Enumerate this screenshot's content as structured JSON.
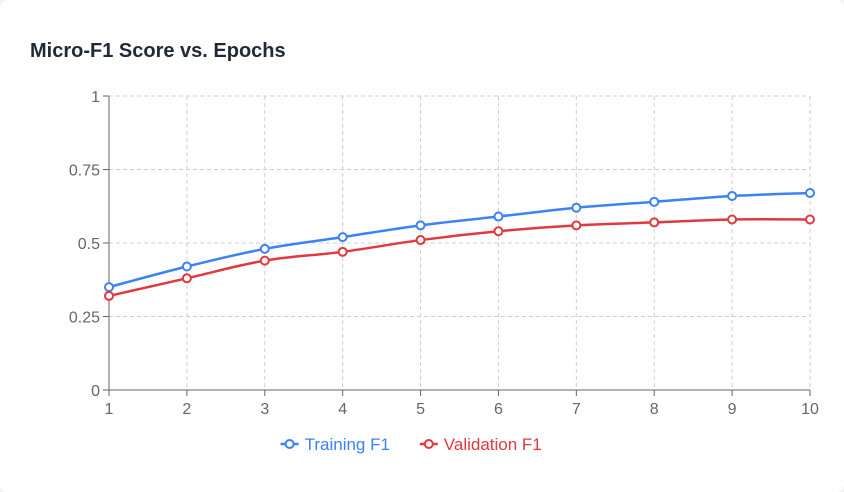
{
  "chart_data": {
    "type": "line",
    "title": "Micro-F1 Score vs. Epochs",
    "xlabel": "",
    "ylabel": "",
    "x": [
      1,
      2,
      3,
      4,
      5,
      6,
      7,
      8,
      9,
      10
    ],
    "xticks": [
      "1",
      "2",
      "3",
      "4",
      "5",
      "6",
      "7",
      "8",
      "9",
      "10"
    ],
    "ylim": [
      0,
      1
    ],
    "yticks": [
      0,
      0.25,
      0.5,
      0.75,
      1
    ],
    "ytick_labels": [
      "0",
      "0.25",
      "0.5",
      "0.75",
      "1"
    ],
    "grid": true,
    "legend_position": "bottom",
    "series": [
      {
        "name": "Training F1",
        "color": "#3b82f6",
        "values": [
          0.35,
          0.42,
          0.48,
          0.52,
          0.56,
          0.59,
          0.62,
          0.64,
          0.66,
          0.67
        ]
      },
      {
        "name": "Validation F1",
        "color": "#e0393e",
        "values": [
          0.32,
          0.38,
          0.44,
          0.47,
          0.51,
          0.54,
          0.56,
          0.57,
          0.58,
          0.58
        ]
      }
    ]
  }
}
